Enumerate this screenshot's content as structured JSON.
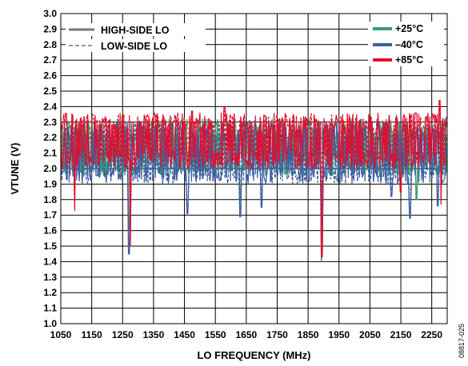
{
  "chart_data": {
    "type": "line",
    "xlabel": "LO FREQUENCY (MHz)",
    "ylabel": "VTUNE (V)",
    "xlim": [
      1050,
      2300
    ],
    "ylim": [
      1.0,
      3.0
    ],
    "x_ticks": [
      "1050",
      "1150",
      "1250",
      "1350",
      "1450",
      "1550",
      "1650",
      "1750",
      "1850",
      "1950",
      "2050",
      "2150",
      "2250"
    ],
    "y_ticks": [
      "1.0",
      "1.1",
      "1.2",
      "1.3",
      "1.4",
      "1.5",
      "1.6",
      "1.7",
      "1.8",
      "1.9",
      "2.0",
      "2.1",
      "2.2",
      "2.3",
      "2.4",
      "2.5",
      "2.6",
      "2.7",
      "2.8",
      "2.9",
      "3.0"
    ],
    "grid": true,
    "legend_style": [
      {
        "label": "HIGH-SIDE LO",
        "style": "solid"
      },
      {
        "label": "LOW-SIDE LO",
        "style": "dashed"
      }
    ],
    "legend_temp": [
      {
        "label": "+25°C",
        "color": "#3a9e6a"
      },
      {
        "label": "–40°C",
        "color": "#3d5fa0"
      },
      {
        "label": "+85°C",
        "color": "#e01030"
      }
    ],
    "series": [
      {
        "name": "+25°C",
        "color": "#3a9e6a",
        "band": [
          1.95,
          2.32
        ],
        "dips": [
          [
            1270,
            1.6
          ],
          [
            1630,
            1.8
          ],
          [
            1895,
            1.55
          ],
          [
            2200,
            1.8
          ]
        ]
      },
      {
        "name": "–40°C",
        "color": "#3d5fa0",
        "band": [
          1.9,
          2.3
        ],
        "dips": [
          [
            1070,
            1.93
          ],
          [
            1270,
            1.45
          ],
          [
            1460,
            1.71
          ],
          [
            1630,
            1.69
          ],
          [
            1700,
            1.75
          ],
          [
            1893,
            1.4
          ],
          [
            2120,
            1.82
          ],
          [
            2180,
            1.68
          ],
          [
            2270,
            1.76
          ]
        ]
      },
      {
        "name": "+85°C",
        "color": "#e01030",
        "band": [
          2.0,
          2.36
        ],
        "dips": [
          [
            1095,
            1.73
          ],
          [
            1275,
            1.5
          ],
          [
            1895,
            1.43
          ],
          [
            2150,
            1.85
          ],
          [
            2280,
            1.77
          ]
        ],
        "peaks": [
          [
            2275,
            2.44
          ],
          [
            1580,
            2.4
          ],
          [
            1475,
            2.37
          ]
        ]
      }
    ]
  },
  "figure_id": "08817-025"
}
